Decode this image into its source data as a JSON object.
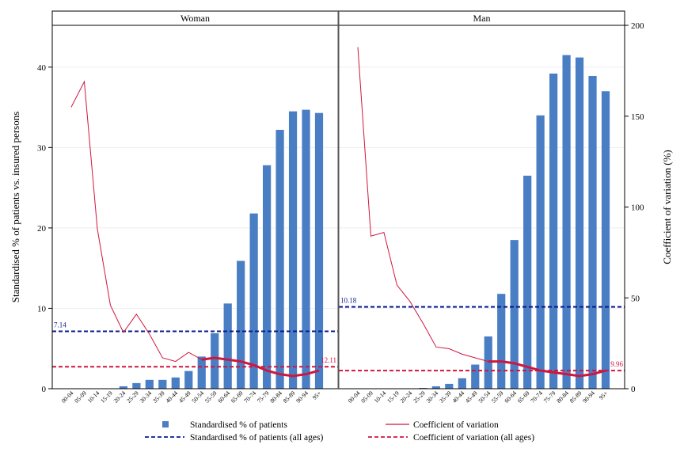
{
  "chart_data": {
    "type": "bar",
    "y_left_label": "Standardised % of patients vs. insured persons",
    "y_right_label": "Coefficient of variation (%)",
    "y_left_ticks": [
      0,
      10,
      20,
      30,
      40
    ],
    "y_right_ticks": [
      0,
      50,
      100,
      150,
      200
    ],
    "ylim_left": [
      0,
      45.2
    ],
    "ylim_right": [
      0,
      200
    ],
    "grid": true,
    "legend_position": "bottom",
    "categories": [
      "00-04",
      "05-09",
      "10-14",
      "15-19",
      "20-24",
      "25-29",
      "30-34",
      "35-39",
      "40-44",
      "45-49",
      "50-54",
      "55-59",
      "60-64",
      "65-69",
      "70-74",
      "75-79",
      "80-84",
      "85-89",
      "90-94",
      "95+"
    ],
    "panels": [
      {
        "title": "Woman",
        "bars": [
          0,
          0,
          0,
          0,
          0.3,
          0.7,
          1.1,
          1.1,
          1.4,
          2.2,
          4.0,
          6.9,
          10.6,
          15.9,
          21.8,
          27.8,
          32.2,
          34.5,
          34.7,
          34.3
        ],
        "cv": [
          155,
          169,
          88,
          46,
          31,
          41,
          30,
          17,
          15,
          20,
          16,
          17,
          16,
          15,
          13,
          10,
          8,
          7,
          8,
          10
        ],
        "cv_bold_start": 10,
        "ref_pct": 7.14,
        "ref_cv": 12.11,
        "ref_pct_label": "7.14",
        "ref_cv_label": "12.11"
      },
      {
        "title": "Man",
        "bars": [
          0,
          0,
          0,
          0,
          0,
          0.1,
          0.3,
          0.6,
          1.3,
          3.0,
          6.5,
          11.8,
          18.5,
          26.5,
          34.0,
          39.2,
          41.5,
          41.2,
          38.9,
          37.0
        ],
        "cv": [
          188,
          84,
          86,
          57,
          48,
          36,
          23,
          22,
          19,
          17,
          15,
          15,
          14,
          12,
          10,
          9,
          8,
          7,
          8,
          10
        ],
        "cv_bold_start": 10,
        "ref_pct": 10.18,
        "ref_cv": 9.96,
        "ref_pct_label": "10.18",
        "ref_cv_label": "9.96"
      }
    ],
    "legend": [
      {
        "label": "Standardised % of patients",
        "kind": "bar",
        "color": "#4a7ec4"
      },
      {
        "label": "Coefficient of variation",
        "kind": "line",
        "color": "#d0163f"
      },
      {
        "label": "Standardised % of patients (all ages)",
        "kind": "dash",
        "color": "#0a1a8a"
      },
      {
        "label": "Coefficient of variation (all ages)",
        "kind": "dash",
        "color": "#d0163f"
      }
    ],
    "colors": {
      "bar": "#4a7ec4",
      "cv_line": "#d0163f",
      "ref_pct": "#0a1a8a",
      "ref_cv": "#d0163f",
      "grid": "#eeeeee"
    }
  }
}
